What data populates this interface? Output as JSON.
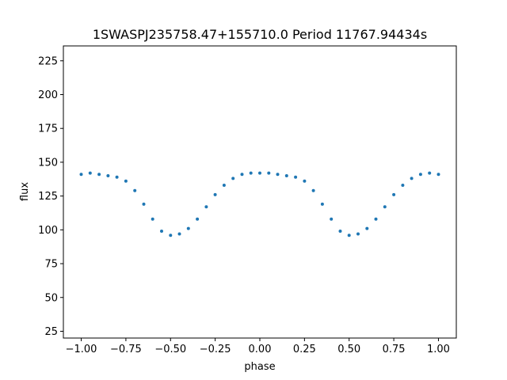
{
  "chart_data": {
    "type": "scatter",
    "title": "1SWASPJ235758.47+155710.0 Period 11767.94434s",
    "xlabel": "phase",
    "ylabel": "flux",
    "xlim": [
      -1.1,
      1.1
    ],
    "ylim": [
      20,
      236
    ],
    "x_ticks": [
      -1.0,
      -0.75,
      -0.5,
      -0.25,
      0.0,
      0.25,
      0.5,
      0.75,
      1.0
    ],
    "x_tick_labels": [
      "−1.00",
      "−0.75",
      "−0.50",
      "−0.25",
      "0.00",
      "0.25",
      "0.50",
      "0.75",
      "1.00"
    ],
    "y_ticks": [
      25,
      50,
      75,
      100,
      125,
      150,
      175,
      200,
      225
    ],
    "y_tick_labels": [
      "25",
      "50",
      "75",
      "100",
      "125",
      "150",
      "175",
      "200",
      "225"
    ],
    "grid": false,
    "marker_color": "#1f77b4",
    "series": [
      {
        "x": [
          -1.0,
          -0.95,
          -0.9,
          -0.85,
          -0.8,
          -0.75,
          -0.7,
          -0.65,
          -0.6,
          -0.55,
          -0.5,
          -0.45,
          -0.4,
          -0.35,
          -0.3,
          -0.25,
          -0.2,
          -0.15,
          -0.1,
          -0.05,
          0.0,
          0.05,
          0.1,
          0.15,
          0.2,
          0.25,
          0.3,
          0.35,
          0.4,
          0.45,
          0.5,
          0.55,
          0.6,
          0.65,
          0.7,
          0.75,
          0.8,
          0.85,
          0.9,
          0.95,
          1.0
        ],
        "y": [
          141,
          142,
          141,
          140,
          139,
          136,
          129,
          119,
          108,
          99,
          96,
          97,
          101,
          108,
          117,
          126,
          133,
          138,
          141,
          142,
          142,
          142,
          141,
          140,
          139,
          136,
          129,
          119,
          108,
          99,
          96,
          97,
          101,
          108,
          117,
          126,
          133,
          138,
          141,
          142,
          141
        ]
      }
    ]
  }
}
